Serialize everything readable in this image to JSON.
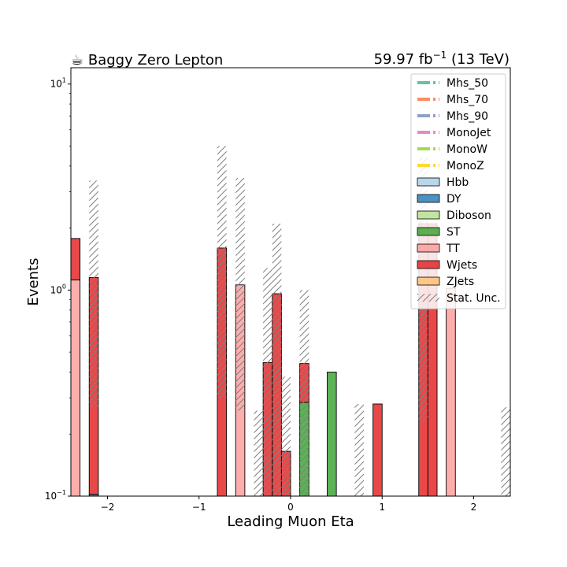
{
  "chart_data": {
    "type": "bar",
    "title": "☕ Baggy Zero Lepton",
    "title_right": "59.97 fb",
    "title_right_sup": "−1",
    "title_right_tail": " (13 TeV)",
    "xlabel": "Leading Muon Eta",
    "ylabel": "Events",
    "xlim": [
      -2.4,
      2.4
    ],
    "ylim": [
      0.1,
      12
    ],
    "y_scale": "log",
    "stacked": true,
    "bin_width": 0.1,
    "x_ticks": [
      -2,
      -1,
      0,
      1,
      2
    ],
    "x_tick_labels": [
      "−2",
      "−1",
      "0",
      "1",
      "2"
    ],
    "y_ticks": [
      0.1,
      1,
      10
    ],
    "y_tick_labels": [
      [
        "10",
        "−1"
      ],
      [
        "10",
        "0"
      ],
      [
        "10",
        "1"
      ]
    ],
    "grid": false,
    "legend_position": "top-right",
    "signal_series": [
      {
        "name": "Mhs_50",
        "color": "#66c2a5"
      },
      {
        "name": "Mhs_70",
        "color": "#fc8d62"
      },
      {
        "name": "Mhs_90",
        "color": "#8da0cb"
      },
      {
        "name": "MonoJet",
        "color": "#e78ac3"
      },
      {
        "name": "MonoW",
        "color": "#a6d854"
      },
      {
        "name": "MonoZ",
        "color": "#ffd92f"
      }
    ],
    "series": [
      {
        "name": "Hbb",
        "color": "#a6cee3",
        "bins": []
      },
      {
        "name": "DY",
        "color": "#1f78b4",
        "bins": [
          {
            "x": -2.15,
            "value": 0.102
          }
        ]
      },
      {
        "name": "Diboson",
        "color": "#b2df8a",
        "bins": []
      },
      {
        "name": "ST",
        "color": "#33a02c",
        "bins": [
          {
            "x": 0.15,
            "value": 0.285
          },
          {
            "x": 0.45,
            "value": 0.4
          }
        ]
      },
      {
        "name": "TT",
        "color": "#fb9a99",
        "bins": [
          {
            "x": -2.35,
            "value": 1.12
          },
          {
            "x": -0.55,
            "value": 1.06
          },
          {
            "x": 1.75,
            "value": 1.02
          }
        ]
      },
      {
        "name": "Wjets",
        "color": "#e31a1c",
        "bins": [
          {
            "x": -2.35,
            "value": 0.66
          },
          {
            "x": -2.15,
            "value": 1.048
          },
          {
            "x": -0.75,
            "value": 1.6
          },
          {
            "x": -0.25,
            "value": 0.445
          },
          {
            "x": -0.15,
            "value": 0.96
          },
          {
            "x": -0.05,
            "value": 0.165
          },
          {
            "x": 0.15,
            "value": 0.155
          },
          {
            "x": 0.95,
            "value": 0.28
          },
          {
            "x": 1.45,
            "value": 2.1
          },
          {
            "x": 1.55,
            "value": 2.1
          }
        ]
      },
      {
        "name": "ZJets",
        "color": "#fdbf6f",
        "bins": []
      }
    ],
    "stat_unc": {
      "name": "Stat. Unc.",
      "bins": [
        {
          "x": -2.15,
          "low": 0.27,
          "high": 3.4
        },
        {
          "x": -0.75,
          "low": 0.3,
          "high": 5.0
        },
        {
          "x": -0.55,
          "low": 0.26,
          "high": 3.5
        },
        {
          "x": -0.35,
          "low": 0.1,
          "high": 0.26
        },
        {
          "x": -0.25,
          "low": 0.1,
          "high": 1.28
        },
        {
          "x": -0.15,
          "low": 0.1,
          "high": 2.1
        },
        {
          "x": -0.05,
          "low": 0.1,
          "high": 0.38
        },
        {
          "x": 0.15,
          "low": 0.1,
          "high": 1.0
        },
        {
          "x": 0.75,
          "low": 0.1,
          "high": 0.28
        },
        {
          "x": 1.45,
          "low": 0.23,
          "high": 4.4
        },
        {
          "x": 2.35,
          "low": 0.1,
          "high": 0.27
        }
      ]
    }
  }
}
